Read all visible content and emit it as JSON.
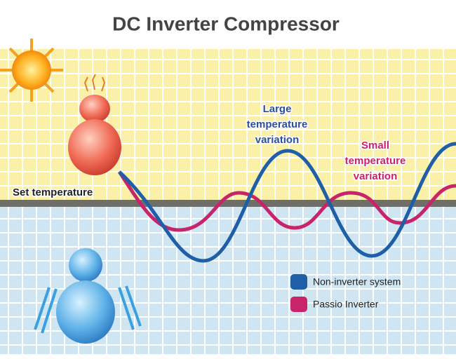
{
  "title": "DC Inverter Compressor",
  "set_temperature": "Set temperature",
  "annotations": [
    {
      "lines": [
        "Large",
        "temperature",
        "variation"
      ]
    },
    {
      "lines": [
        "Small",
        "temperature",
        "variation"
      ]
    }
  ],
  "legend": [
    {
      "label": "Non-inverter system"
    },
    {
      "label": "Passio Inverter"
    }
  ]
}
